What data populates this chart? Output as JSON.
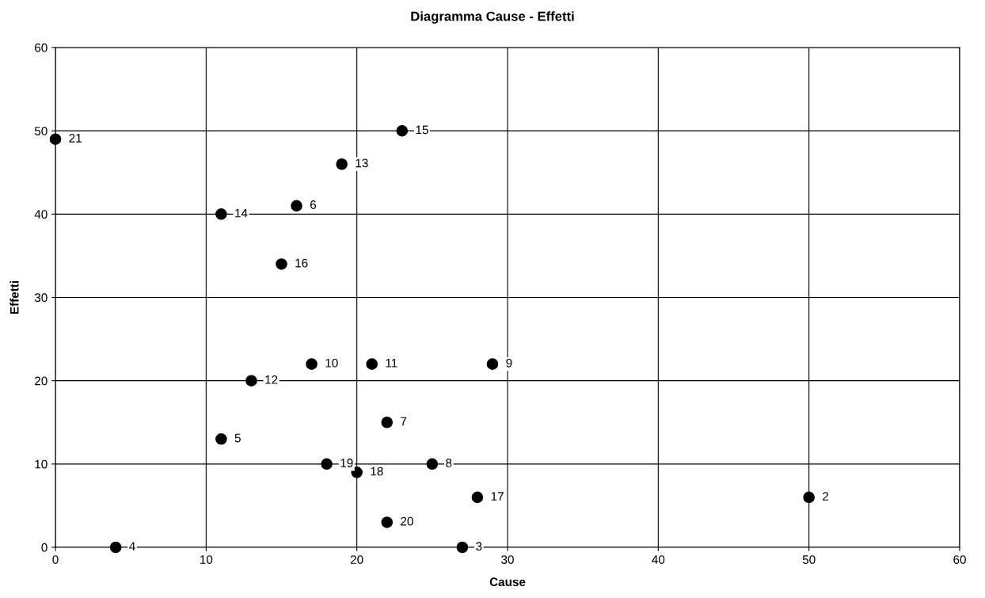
{
  "chart_data": {
    "type": "scatter",
    "title": "Diagramma Cause - Effetti",
    "xlabel": "Cause",
    "ylabel": "Effetti",
    "x": [
      0,
      23,
      19,
      11,
      16,
      15,
      17,
      21,
      29,
      13,
      22,
      11,
      18,
      20,
      25,
      28,
      50,
      22,
      4,
      27
    ],
    "values": [
      49,
      50,
      46,
      40,
      41,
      34,
      22,
      22,
      22,
      20,
      15,
      13,
      10,
      9,
      10,
      6,
      6,
      3,
      0,
      0
    ],
    "color": "#000000",
    "marker": "circle",
    "xlim": [
      0,
      60
    ],
    "xticks": [
      0,
      10,
      20,
      30,
      40,
      50,
      60
    ],
    "ylim": [
      0,
      60
    ],
    "yticks": [
      0,
      10,
      20,
      30,
      40,
      50,
      60
    ],
    "grid": true,
    "annotations": [
      {
        "text": "21",
        "x": 0,
        "y": 49
      },
      {
        "text": "15",
        "x": 23,
        "y": 50
      },
      {
        "text": "13",
        "x": 19,
        "y": 46
      },
      {
        "text": "14",
        "x": 11,
        "y": 40
      },
      {
        "text": "6",
        "x": 16,
        "y": 41
      },
      {
        "text": "16",
        "x": 15,
        "y": 34
      },
      {
        "text": "10",
        "x": 17,
        "y": 22
      },
      {
        "text": "11",
        "x": 21,
        "y": 22
      },
      {
        "text": "9",
        "x": 29,
        "y": 22
      },
      {
        "text": "12",
        "x": 13,
        "y": 20
      },
      {
        "text": "7",
        "x": 22,
        "y": 15
      },
      {
        "text": "5",
        "x": 11,
        "y": 13
      },
      {
        "text": "19",
        "x": 18,
        "y": 10
      },
      {
        "text": "18",
        "x": 20,
        "y": 9
      },
      {
        "text": "8",
        "x": 25,
        "y": 10
      },
      {
        "text": "17",
        "x": 28,
        "y": 6
      },
      {
        "text": "2",
        "x": 50,
        "y": 6
      },
      {
        "text": "20",
        "x": 22,
        "y": 3
      },
      {
        "text": "4",
        "x": 4,
        "y": 0
      },
      {
        "text": "3",
        "x": 27,
        "y": 0
      }
    ]
  }
}
